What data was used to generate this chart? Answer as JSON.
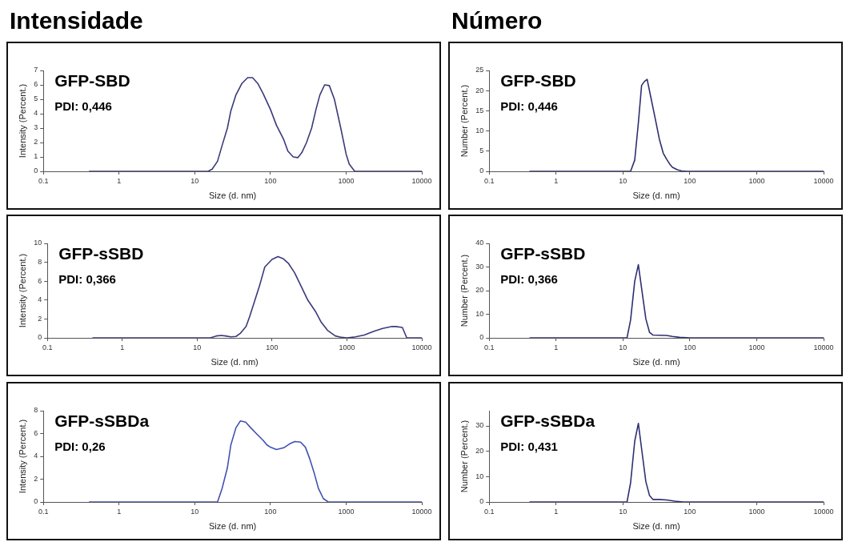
{
  "chart_data": [
    {
      "type": "line",
      "title": "Intensidade",
      "xlabel": "Size (d. nm)",
      "ylabel": "Intensity (Percent.)",
      "log": "x",
      "xlim": [
        0.1,
        10000
      ],
      "xticks": [
        0.1,
        1,
        10,
        100,
        1000,
        10000
      ],
      "ylim": [
        0,
        7
      ],
      "yticks": [
        0,
        1,
        2,
        3,
        4,
        5,
        6,
        7
      ],
      "annotations": [
        "GFP-SBD",
        "PDI: 0,446"
      ],
      "x": [
        0.4,
        15,
        17,
        20,
        23,
        27,
        30,
        35,
        42,
        50,
        58,
        68,
        80,
        100,
        120,
        150,
        170,
        200,
        230,
        260,
        300,
        350,
        400,
        450,
        520,
        600,
        700,
        850,
        1000,
        1100,
        1300,
        10000
      ],
      "series": [
        {
          "color": "#3a3a7a",
          "values": [
            0,
            0,
            0.15,
            0.7,
            1.8,
            3,
            4.2,
            5.3,
            6.1,
            6.5,
            6.5,
            6.1,
            5.4,
            4.3,
            3.2,
            2.2,
            1.4,
            1,
            0.95,
            1.3,
            2,
            3,
            4.3,
            5.3,
            6,
            5.95,
            5,
            3,
            1.2,
            0.5,
            0,
            0
          ]
        }
      ]
    },
    {
      "type": "line",
      "title": "Número",
      "xlabel": "Size (d. nm)",
      "ylabel": "Number (Percent.)",
      "log": "x",
      "xlim": [
        0.1,
        10000
      ],
      "xticks": [
        0.1,
        1,
        10,
        100,
        1000,
        10000
      ],
      "ylim": [
        0,
        25
      ],
      "yticks": [
        0,
        5,
        10,
        15,
        20,
        25
      ],
      "annotations": [
        "GFP-SBD",
        "PDI: 0,446"
      ],
      "x": [
        0.4,
        13,
        15,
        17,
        19,
        21,
        23,
        26,
        30,
        35,
        40,
        45,
        50,
        55,
        65,
        75,
        90,
        10000
      ],
      "series": [
        {
          "color": "#2e2e72",
          "values": [
            0,
            0,
            2.8,
            12,
            21.3,
            22.3,
            22.8,
            18.5,
            13.5,
            8,
            4.5,
            3,
            1.8,
            1,
            0.4,
            0.1,
            0,
            0
          ]
        }
      ]
    },
    {
      "type": "line",
      "xlabel": "Size (d. nm)",
      "ylabel": "Intensity (Percent.)",
      "log": "x",
      "xlim": [
        0.1,
        10000
      ],
      "xticks": [
        0.1,
        1,
        10,
        100,
        1000,
        10000
      ],
      "ylim": [
        0,
        10
      ],
      "yticks": [
        0,
        2,
        4,
        6,
        8,
        10
      ],
      "annotations": [
        "GFP-sSBD",
        "PDI: 0,366"
      ],
      "x": [
        0.4,
        15,
        18,
        21,
        24,
        28,
        33,
        38,
        45,
        50,
        58,
        68,
        80,
        100,
        120,
        140,
        165,
        200,
        250,
        300,
        380,
        450,
        550,
        700,
        850,
        1000,
        1300,
        1700,
        2300,
        3000,
        4000,
        4500,
        5500,
        6300,
        10000
      ],
      "series": [
        {
          "color": "#3a3a7a",
          "values": [
            0,
            0,
            0.2,
            0.25,
            0.2,
            0.1,
            0.15,
            0.5,
            1.2,
            2.2,
            3.8,
            5.5,
            7.5,
            8.3,
            8.6,
            8.4,
            7.9,
            6.9,
            5.3,
            4,
            2.8,
            1.7,
            0.8,
            0.2,
            0.05,
            0,
            0.1,
            0.3,
            0.7,
            1,
            1.2,
            1.2,
            1.1,
            0,
            0
          ]
        }
      ]
    },
    {
      "type": "line",
      "xlabel": "Size (d. nm)",
      "ylabel": "Number (Percent.)",
      "log": "x",
      "xlim": [
        0.1,
        10000
      ],
      "xticks": [
        0.1,
        1,
        10,
        100,
        1000,
        10000
      ],
      "ylim": [
        0,
        40
      ],
      "yticks": [
        0,
        10,
        20,
        30,
        40
      ],
      "annotations": [
        "GFP-sSBD",
        "PDI: 0,366"
      ],
      "x": [
        0.4,
        11.5,
        13,
        15,
        17,
        19,
        22,
        25,
        28,
        35,
        45,
        55,
        70,
        100,
        10000
      ],
      "series": [
        {
          "color": "#2e2e72",
          "values": [
            0,
            0,
            7.5,
            24,
            31,
            21,
            8,
            2.3,
            1.2,
            1.1,
            1,
            0.6,
            0.2,
            0,
            0
          ]
        }
      ]
    },
    {
      "type": "line",
      "xlabel": "Size (d. nm)",
      "ylabel": "Intensity (Percent.)",
      "log": "x",
      "xlim": [
        0.1,
        10000
      ],
      "xticks": [
        0.1,
        1,
        10,
        100,
        1000,
        10000
      ],
      "ylim": [
        0,
        8
      ],
      "yticks": [
        0,
        2,
        4,
        6,
        8
      ],
      "annotations": [
        "GFP-sSBDa",
        "PDI: 0,26"
      ],
      "x": [
        0.4,
        20,
        23,
        27,
        30,
        35,
        40,
        47,
        55,
        65,
        80,
        90,
        100,
        120,
        150,
        180,
        210,
        250,
        290,
        330,
        380,
        430,
        500,
        580,
        10000
      ],
      "series": [
        {
          "color": "#4050b0",
          "values": [
            0,
            0,
            1.2,
            3,
            5,
            6.5,
            7.1,
            7,
            6.5,
            6,
            5.4,
            5,
            4.8,
            4.6,
            4.75,
            5.1,
            5.3,
            5.25,
            4.8,
            3.8,
            2.5,
            1.2,
            0.3,
            0,
            0
          ]
        }
      ]
    },
    {
      "type": "line",
      "xlabel": "Size (d. nm)",
      "ylabel": "Number (Percent.)",
      "log": "x",
      "xlim": [
        0.1,
        10000
      ],
      "xticks": [
        0.1,
        1,
        10,
        100,
        1000,
        10000
      ],
      "ylim": [
        0,
        36
      ],
      "yticks": [
        0,
        10,
        20,
        30
      ],
      "annotations": [
        "GFP-sSBDa",
        "PDI: 0,431"
      ],
      "x": [
        0.4,
        11.5,
        13,
        15,
        17,
        19,
        22,
        25,
        28,
        35,
        45,
        60,
        80,
        100,
        10000
      ],
      "series": [
        {
          "color": "#2e2e72",
          "values": [
            0,
            0,
            7.5,
            24,
            31,
            21,
            8,
            2.5,
            1,
            1,
            0.8,
            0.3,
            0,
            0,
            0
          ]
        }
      ]
    }
  ]
}
